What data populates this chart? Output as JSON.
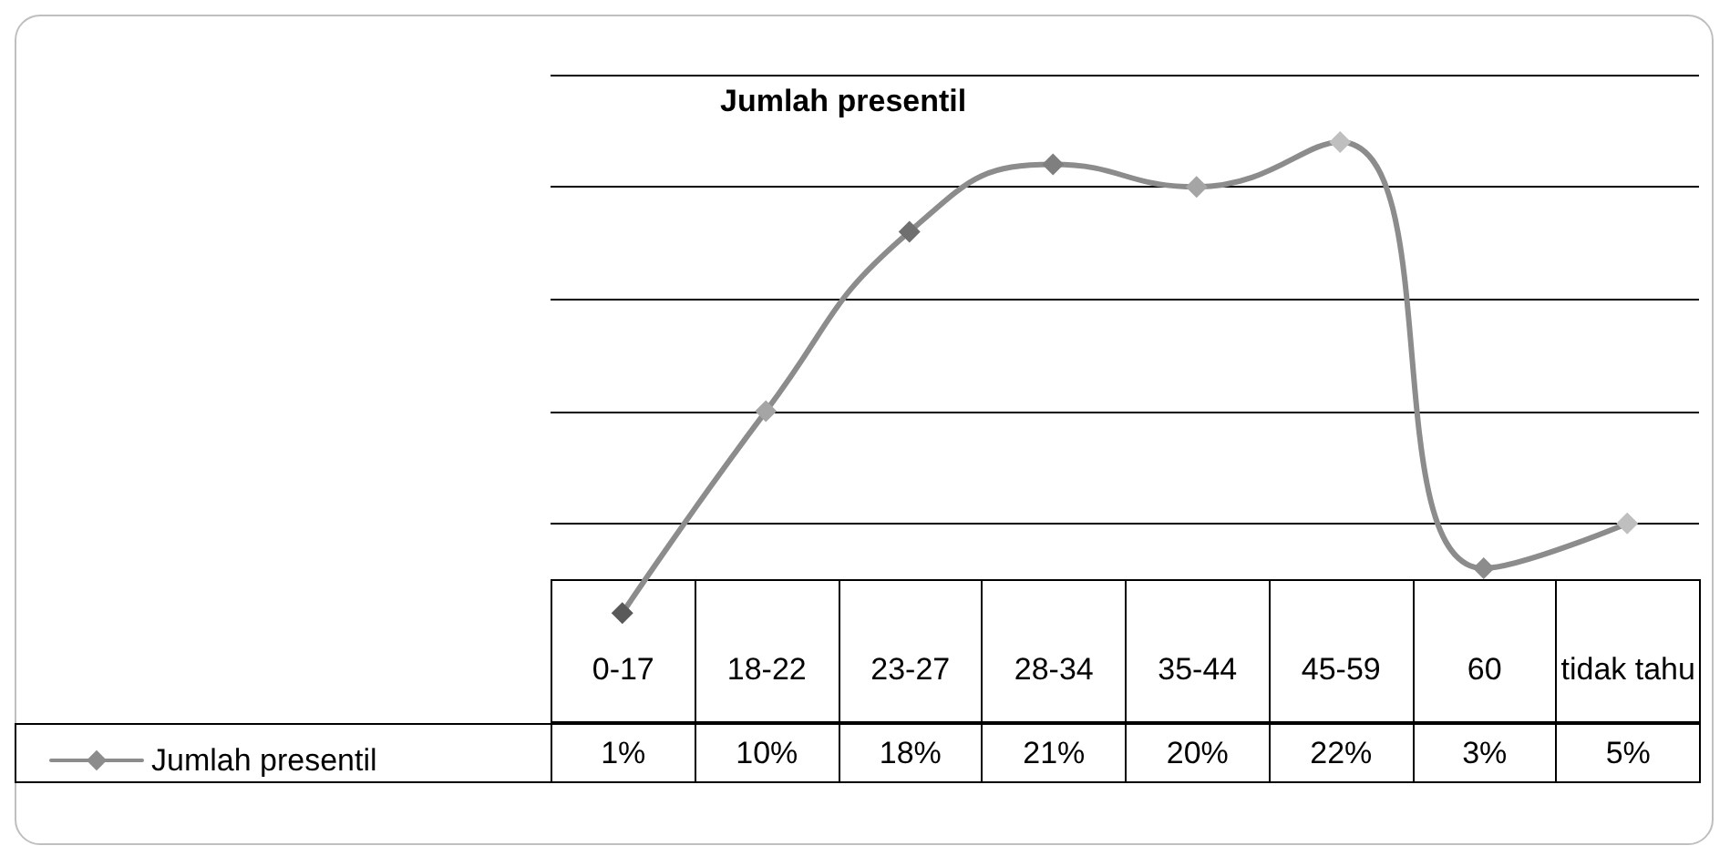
{
  "chart_data": {
    "type": "line",
    "title": "Jumlah presentil",
    "categories": [
      "0-17",
      "18-22",
      "23-27",
      "28-34",
      "35-44",
      "45-59",
      "60",
      "tidak tahu"
    ],
    "series": [
      {
        "name": "Jumlah presentil",
        "color": "#8c8c8c",
        "colors": [
          "#595959",
          "#a5a5a5",
          "#6f6f6f",
          "#7f7f7f",
          "#a5a5a5",
          "#bfbfbf",
          "#8c8c8c",
          "#bfbfbf"
        ],
        "values": [
          1,
          10,
          18,
          21,
          20,
          22,
          3,
          5
        ],
        "value_labels": [
          "1%",
          "10%",
          "18%",
          "21%",
          "20%",
          "22%",
          "3%",
          "5%"
        ]
      }
    ],
    "yticks": [
      {
        "value": 5,
        "label": null
      },
      {
        "value": 10,
        "label": null
      },
      {
        "value": 15,
        "label": null
      },
      {
        "value": 20,
        "label": null
      },
      {
        "value": 25,
        "label": null
      }
    ],
    "grid": "y",
    "legend": "bottom left",
    "tick_labels": "x",
    "marker": "diamond",
    "line_style": "solid"
  }
}
